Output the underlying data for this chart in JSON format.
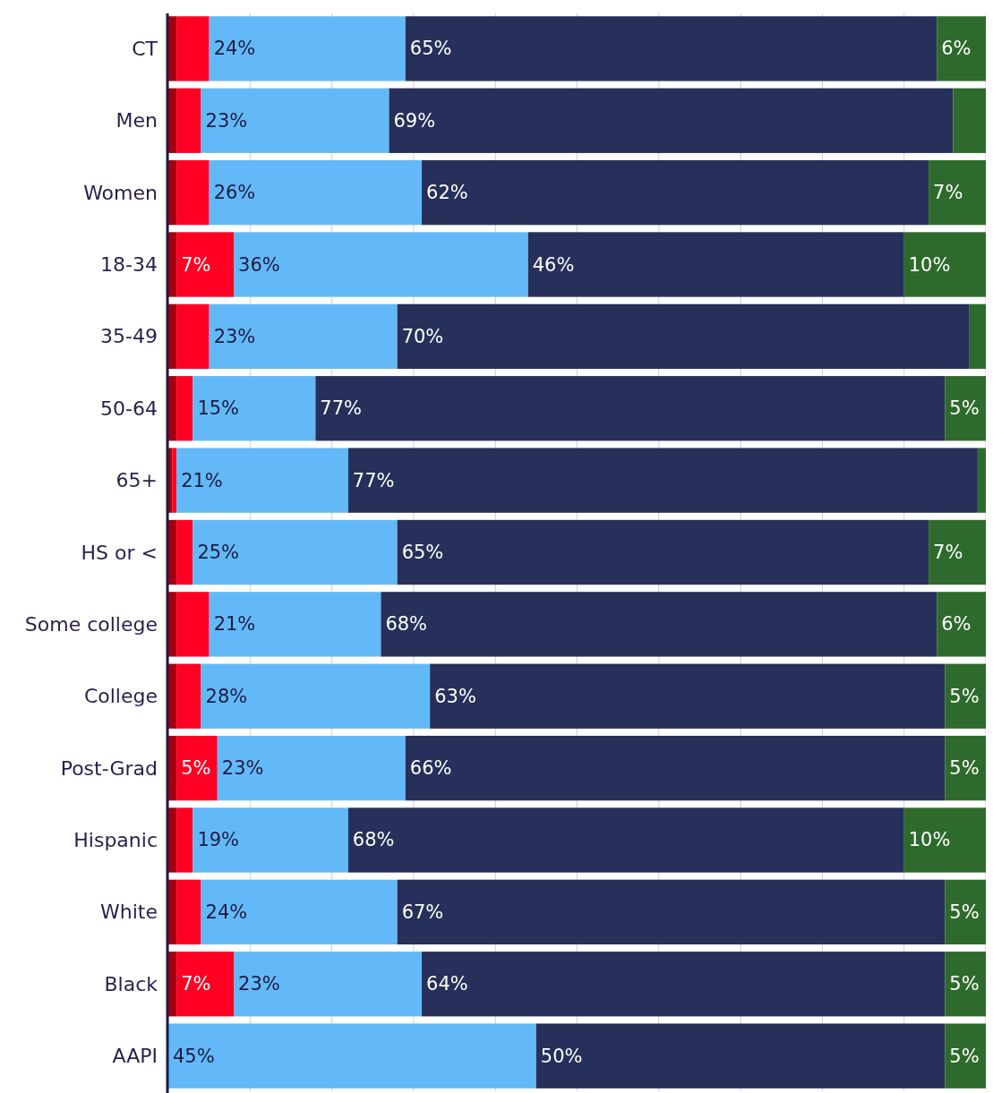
{
  "chart_data": {
    "type": "bar",
    "orientation": "horizontal",
    "stacked": true,
    "grid": "x",
    "tick_labels": "y",
    "xlim": [
      0,
      100
    ],
    "xticks": [
      {
        "value": 0,
        "label": null
      },
      {
        "value": 10,
        "label": null
      },
      {
        "value": 20,
        "label": null
      },
      {
        "value": 30,
        "label": null
      },
      {
        "value": 40,
        "label": null
      },
      {
        "value": 50,
        "label": null
      },
      {
        "value": 60,
        "label": null
      },
      {
        "value": 70,
        "label": null
      },
      {
        "value": 80,
        "label": null
      },
      {
        "value": 90,
        "label": null
      },
      {
        "value": 100,
        "label": null
      }
    ],
    "categories": [
      "CT",
      "Men",
      "Women",
      "18-34",
      "35-49",
      "50-64",
      "65+",
      "HS or <",
      "Some college",
      "College",
      "Post-Grad",
      "Hispanic",
      "White",
      "Black",
      "AAPI"
    ],
    "series": [
      {
        "color": "#a3000f",
        "values": [
          1,
          1,
          1,
          1,
          1,
          1,
          0.5,
          1,
          1,
          1,
          1,
          1,
          1,
          1,
          0
        ],
        "value_labels": [
          null,
          null,
          null,
          null,
          null,
          null,
          null,
          null,
          null,
          null,
          null,
          null,
          null,
          null,
          null
        ]
      },
      {
        "color": "#ff0024",
        "values": [
          4,
          3,
          4,
          7,
          4,
          2,
          0.5,
          2,
          4,
          3,
          5,
          2,
          3,
          7,
          0
        ],
        "value_labels": [
          null,
          null,
          null,
          "7%",
          null,
          null,
          null,
          null,
          null,
          null,
          "5%",
          null,
          null,
          "7%",
          null
        ]
      },
      {
        "color": "#63b9f8",
        "values": [
          24,
          23,
          26,
          36,
          23,
          15,
          21,
          25,
          21,
          28,
          23,
          19,
          24,
          23,
          45
        ],
        "value_labels": [
          "24%",
          "23%",
          "26%",
          "36%",
          "23%",
          "15%",
          "21%",
          "25%",
          "21%",
          "28%",
          "23%",
          "19%",
          "24%",
          "23%",
          "45%"
        ]
      },
      {
        "color": "#26305a",
        "values": [
          65,
          69,
          62,
          46,
          70,
          77,
          77,
          65,
          68,
          63,
          66,
          68,
          67,
          64,
          50
        ],
        "value_labels": [
          "65%",
          "69%",
          "62%",
          "46%",
          "70%",
          "77%",
          "77%",
          "65%",
          "68%",
          "63%",
          "66%",
          "68%",
          "67%",
          "64%",
          "50%"
        ]
      },
      {
        "color": "#2e6a2c",
        "values": [
          6,
          4,
          7,
          10,
          2,
          5,
          1,
          7,
          6,
          5,
          5,
          10,
          5,
          5,
          5
        ],
        "value_labels": [
          "6%",
          null,
          "7%",
          "10%",
          null,
          "5%",
          null,
          "7%",
          "6%",
          "5%",
          "5%",
          "10%",
          "5%",
          "5%",
          "5%"
        ]
      }
    ]
  }
}
